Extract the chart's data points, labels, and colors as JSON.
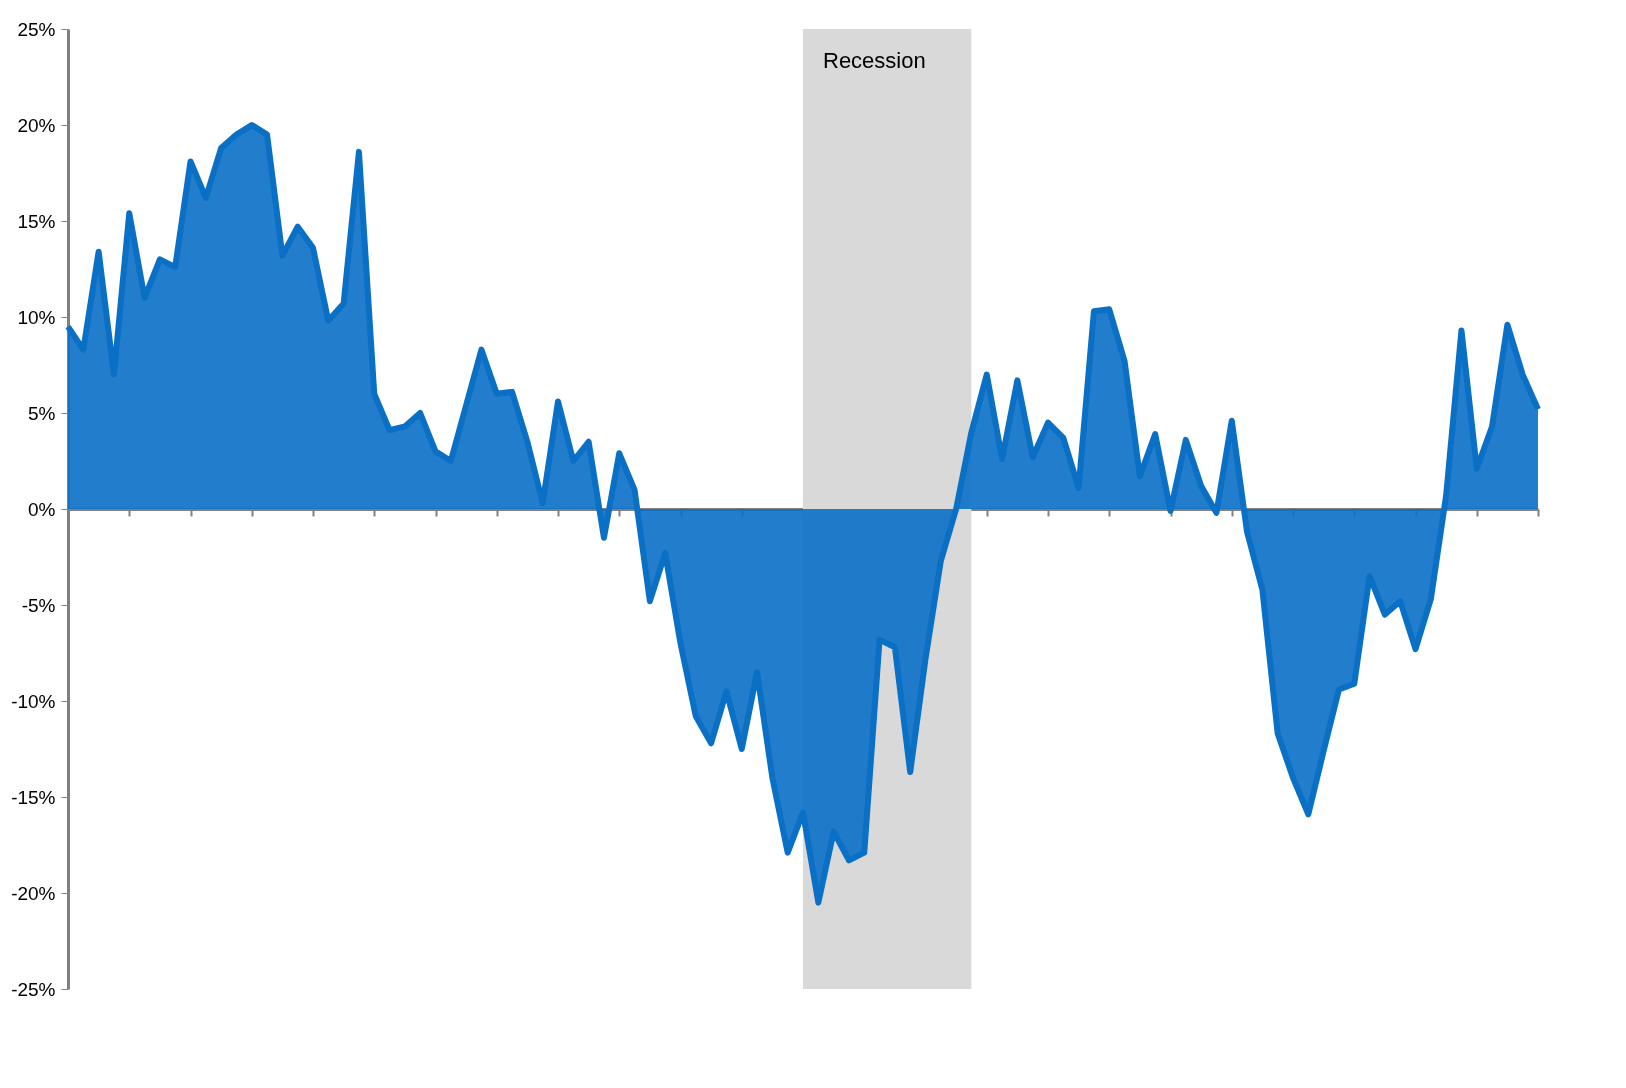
{
  "chart_data": {
    "type": "area",
    "categories": [
      null,
      null,
      null,
      null,
      null,
      null,
      null,
      null,
      null,
      null,
      null,
      null,
      null,
      null,
      null,
      null,
      null,
      null,
      null,
      null,
      null,
      null,
      null,
      null,
      null,
      null,
      null,
      null,
      null,
      null,
      null,
      null,
      null,
      null,
      null,
      null,
      null,
      null,
      null,
      null,
      null,
      null,
      null,
      null,
      null,
      null,
      null,
      null,
      null,
      null,
      null,
      null,
      null,
      null,
      null,
      null,
      null,
      null,
      null,
      null,
      null,
      null,
      null,
      null,
      null,
      null,
      null,
      null,
      null,
      null,
      null,
      null,
      null,
      null,
      null,
      null,
      null,
      null,
      null,
      null,
      null,
      null,
      null,
      null,
      null,
      null,
      null,
      null,
      null,
      null,
      null,
      null,
      null,
      null,
      null,
      null,
      null
    ],
    "series": [
      {
        "color": "#0a70c6",
        "values": [
          9.5,
          8.3,
          13.4,
          7.0,
          15.4,
          11.0,
          13.0,
          12.6,
          18.1,
          16.2,
          18.8,
          19.5,
          20.0,
          19.5,
          13.2,
          14.7,
          13.6,
          9.8,
          10.7,
          18.6,
          6.0,
          4.1,
          4.3,
          5.0,
          3.0,
          2.5,
          5.4,
          8.3,
          6.0,
          6.1,
          3.5,
          0.3,
          5.6,
          2.5,
          3.5,
          -1.5,
          2.9,
          1.0,
          -4.8,
          -2.3,
          -7.0,
          -10.8,
          -12.2,
          -9.5,
          -12.5,
          -8.5,
          -14.0,
          -17.9,
          -15.8,
          -20.5,
          -16.8,
          -18.3,
          -17.9,
          -6.8,
          -7.2,
          -13.7,
          -7.8,
          -2.7,
          0.0,
          4.0,
          7.0,
          2.6,
          6.7,
          2.7,
          4.5,
          3.7,
          1.1,
          10.3,
          10.4,
          7.7,
          1.7,
          3.9,
          -0.1,
          3.6,
          1.2,
          -0.2,
          4.6,
          -1.2,
          -4.2,
          -11.7,
          -14.0,
          -15.9,
          -12.6,
          -9.4,
          -9.1,
          -3.5,
          -5.5,
          -4.8,
          -7.3,
          -4.7,
          0.7,
          9.3,
          2.1,
          4.3,
          9.6,
          7.0,
          5.2
        ]
      }
    ],
    "ylim": [
      -25,
      25
    ],
    "yticks": [
      {
        "value": -25,
        "label": "-25%"
      },
      {
        "value": -20,
        "label": "-20%"
      },
      {
        "value": -15,
        "label": "-15%"
      },
      {
        "value": -10,
        "label": "-10%"
      },
      {
        "value": -5,
        "label": "-5%"
      },
      {
        "value": 0,
        "label": "0%"
      },
      {
        "value": 5,
        "label": "5%"
      },
      {
        "value": 10,
        "label": "10%"
      },
      {
        "value": 15,
        "label": "15%"
      },
      {
        "value": 20,
        "label": "20%"
      },
      {
        "value": 25,
        "label": "25%"
      }
    ],
    "annotations": [
      "Recession"
    ]
  }
}
